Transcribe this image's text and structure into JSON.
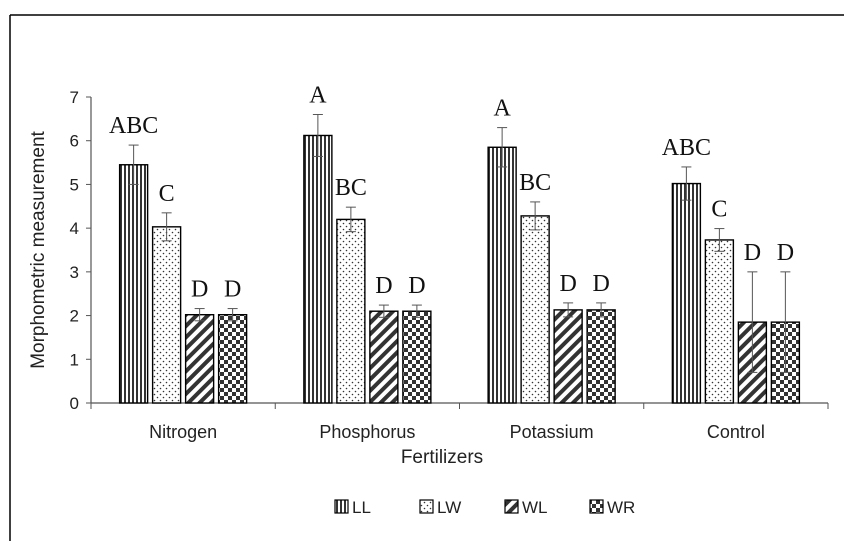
{
  "chart_data": {
    "type": "bar",
    "xlabel": "Fertilizers",
    "ylabel": "Morphometric measurement",
    "ylim": [
      0,
      7
    ],
    "yticks": [
      "0",
      "1",
      "2",
      "3",
      "4",
      "5",
      "6",
      "7"
    ],
    "categories": [
      "Nitrogen",
      "Phosphorus",
      "Potassium",
      "Control"
    ],
    "grid": false,
    "legend_position": "bottom",
    "series": [
      {
        "name": "LL",
        "pattern": "vertical-stripes",
        "values": [
          5.45,
          6.12,
          5.85,
          5.02
        ],
        "errors": [
          0.45,
          0.48,
          0.45,
          0.38
        ],
        "labels": [
          "ABC",
          "A",
          "A",
          "ABC"
        ]
      },
      {
        "name": "LW",
        "pattern": "dots",
        "values": [
          4.03,
          4.2,
          4.28,
          3.73
        ],
        "errors": [
          0.32,
          0.28,
          0.32,
          0.26
        ],
        "labels": [
          "C",
          "BC",
          "BC",
          "C"
        ]
      },
      {
        "name": "WL",
        "pattern": "diagonal-stripes",
        "values": [
          2.02,
          2.1,
          2.13,
          1.85
        ],
        "errors": [
          0.14,
          0.14,
          0.16,
          1.15
        ],
        "labels": [
          "D",
          "D",
          "D",
          "D"
        ]
      },
      {
        "name": "WR",
        "pattern": "checker",
        "values": [
          2.02,
          2.1,
          2.13,
          1.85
        ],
        "errors": [
          0.14,
          0.14,
          0.16,
          1.15
        ],
        "labels": [
          "D",
          "D",
          "D",
          "D"
        ]
      }
    ],
    "colors": {
      "bar_stroke": "#000000",
      "pattern_ink": "#333333",
      "axis": "#555555",
      "frame": "#000000"
    }
  }
}
